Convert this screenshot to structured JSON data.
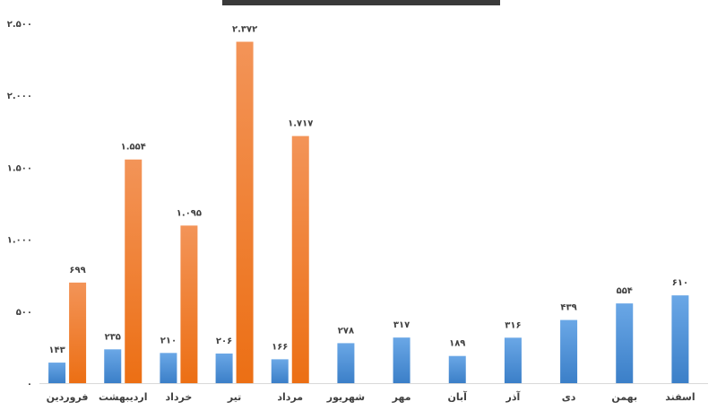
{
  "chart_data": {
    "type": "bar",
    "ylim": [
      0,
      2500
    ],
    "yticks": [
      0,
      500,
      1000,
      1500,
      2000,
      2500
    ],
    "ytick_labels": [
      "۰",
      "۵۰۰",
      "۱.۰۰۰",
      "۱.۵۰۰",
      "۲.۰۰۰",
      "۲.۵۰۰"
    ],
    "categories": [
      "فروردین",
      "اردیبهشت",
      "خرداد",
      "تیر",
      "مرداد",
      "شهریور",
      "مهر",
      "آبان",
      "آذر",
      "دی",
      "بهمن",
      "اسفند"
    ],
    "series": [
      {
        "color": "#4f93d8",
        "values": [
          143,
          235,
          210,
          206,
          166,
          278,
          317,
          189,
          316,
          439,
          554,
          610
        ],
        "labels": [
          "۱۴۳",
          "۲۳۵",
          "۲۱۰",
          "۲۰۶",
          "۱۶۶",
          "۲۷۸",
          "۳۱۷",
          "۱۸۹",
          "۳۱۶",
          "۴۳۹",
          "۵۵۴",
          "۶۱۰"
        ]
      },
      {
        "color": "#f07b2a",
        "values": [
          699,
          1554,
          1095,
          2372,
          1717,
          null,
          null,
          null,
          null,
          null,
          null,
          null
        ],
        "labels": [
          "۶۹۹",
          "۱.۵۵۴",
          "۱.۰۹۵",
          "۲.۳۷۲",
          "۱.۷۱۷",
          "",
          "",
          "",
          "",
          "",
          "",
          ""
        ]
      }
    ],
    "grid": false,
    "legend": "none"
  }
}
